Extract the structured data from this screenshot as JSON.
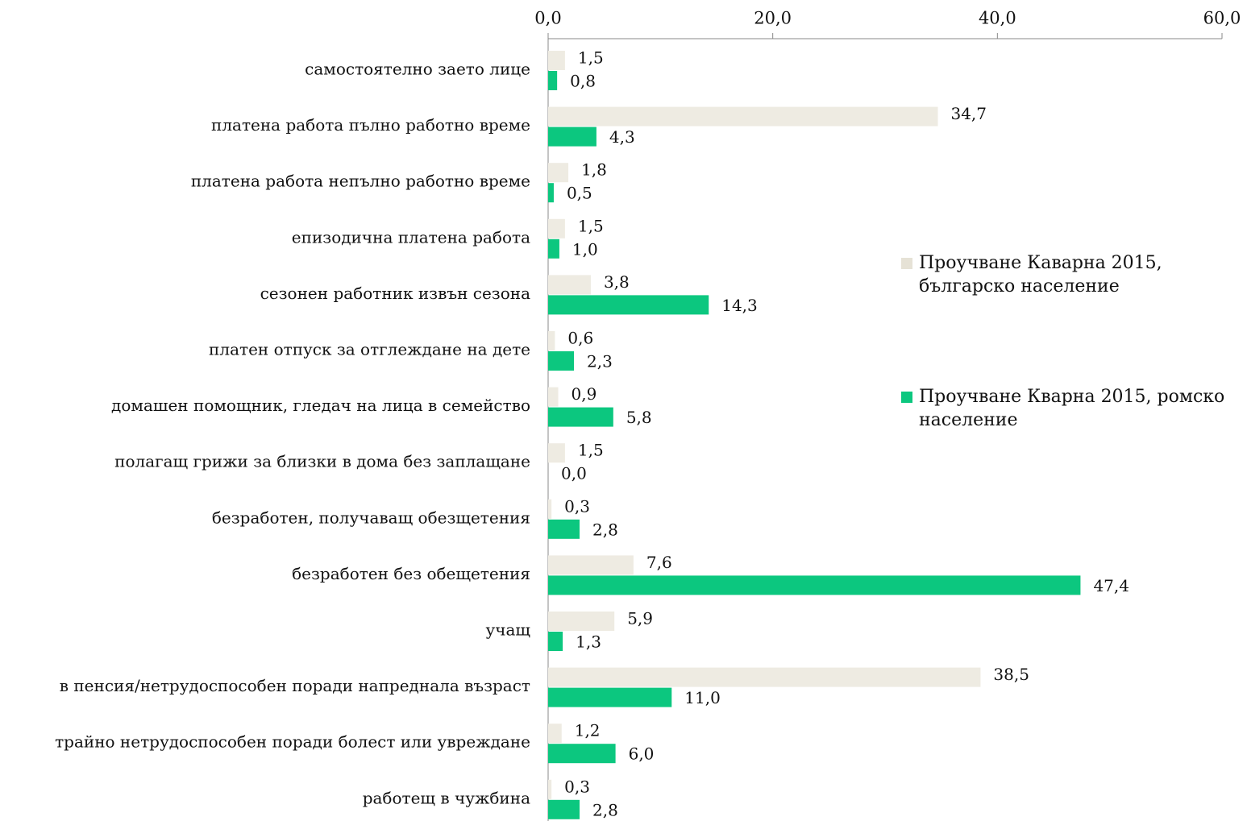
{
  "chart_data": {
    "type": "bar",
    "orientation": "horizontal",
    "categories": [
      "самостоятелно заето лице",
      "платена работа пълно работно време",
      "платена работа непълно работно време",
      "епизодична платена работа",
      "сезонен работник извън сезона",
      "платен отпуск за отглеждане на дете",
      "домашен помощник, гледач на лица в семейство",
      "полагащ грижи за близки в дома без заплащане",
      "безработен, получаващ обезщетения",
      "безработен без обещетения",
      "учащ",
      "в пенсия/нетрудоспособен поради напреднала възраст",
      "трайно нетрудоспособен поради болест или увреждане",
      "работещ в чужбина"
    ],
    "series": [
      {
        "name": "Проучване Каварна 2015, българско население",
        "color": "#eeebe2",
        "values": [
          1.5,
          34.7,
          1.8,
          1.5,
          3.8,
          0.6,
          0.9,
          1.5,
          0.3,
          7.6,
          5.9,
          38.5,
          1.2,
          0.3
        ],
        "value_labels": [
          "1,5",
          "34,7",
          "1,8",
          "1,5",
          "3,8",
          "0,6",
          "0,9",
          "1,5",
          "0,3",
          "7,6",
          "5,9",
          "38,5",
          "1,2",
          "0,3"
        ]
      },
      {
        "name": "Проучване Кварна 2015, ромско население",
        "color": "#0cc77f",
        "values": [
          0.8,
          4.3,
          0.5,
          1.0,
          14.3,
          2.3,
          5.8,
          0.0,
          2.8,
          47.4,
          1.3,
          11.0,
          6.0,
          2.8
        ],
        "value_labels": [
          "0,8",
          "4,3",
          "0,5",
          "1,0",
          "14,3",
          "2,3",
          "5,8",
          "0,0",
          "2,8",
          "47,4",
          "1,3",
          "11,0",
          "6,0",
          "2,8"
        ]
      }
    ],
    "xlim": [
      0,
      60
    ],
    "xticks": [
      {
        "value": 0,
        "label": "0,0"
      },
      {
        "value": 20,
        "label": "20,0"
      },
      {
        "value": 40,
        "label": "40,0"
      },
      {
        "value": 60,
        "label": "60,0"
      }
    ],
    "grid": false,
    "legend": "right"
  }
}
